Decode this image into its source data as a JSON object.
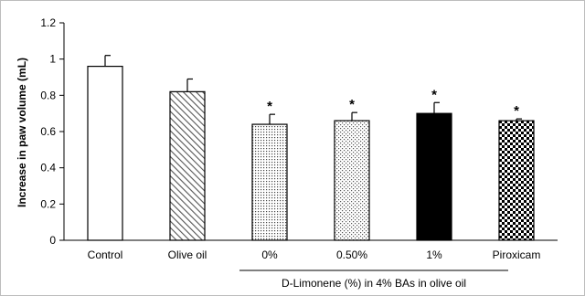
{
  "chart_data": {
    "type": "bar",
    "categories": [
      "Control",
      "Olive oil",
      "0%",
      "0.50%",
      "1%",
      "Piroxicam"
    ],
    "values": [
      0.96,
      0.82,
      0.64,
      0.66,
      0.7,
      0.66
    ],
    "errors": [
      0.06,
      0.07,
      0.055,
      0.045,
      0.06,
      0.01
    ],
    "significant": [
      false,
      false,
      true,
      true,
      true,
      true
    ],
    "significance_marker": "*",
    "ylabel": "Increase in paw volume (mL)",
    "xlabel": "",
    "ylim": [
      0,
      1.2
    ],
    "yticks": [
      "0",
      "0.2",
      "0.4",
      "0.6",
      "0.8",
      "1",
      "1.2"
    ],
    "group_label": "D-Limonene (%) in 4% BAs in olive oil",
    "grid": false,
    "legend": "none",
    "fills": [
      "white",
      "diagonal-hatch",
      "fine-dots",
      "sparse-dots",
      "solid-black",
      "checker"
    ],
    "colors": {
      "bar_stroke": "#000000",
      "solid": "#000000",
      "hatch": "#555555"
    }
  }
}
